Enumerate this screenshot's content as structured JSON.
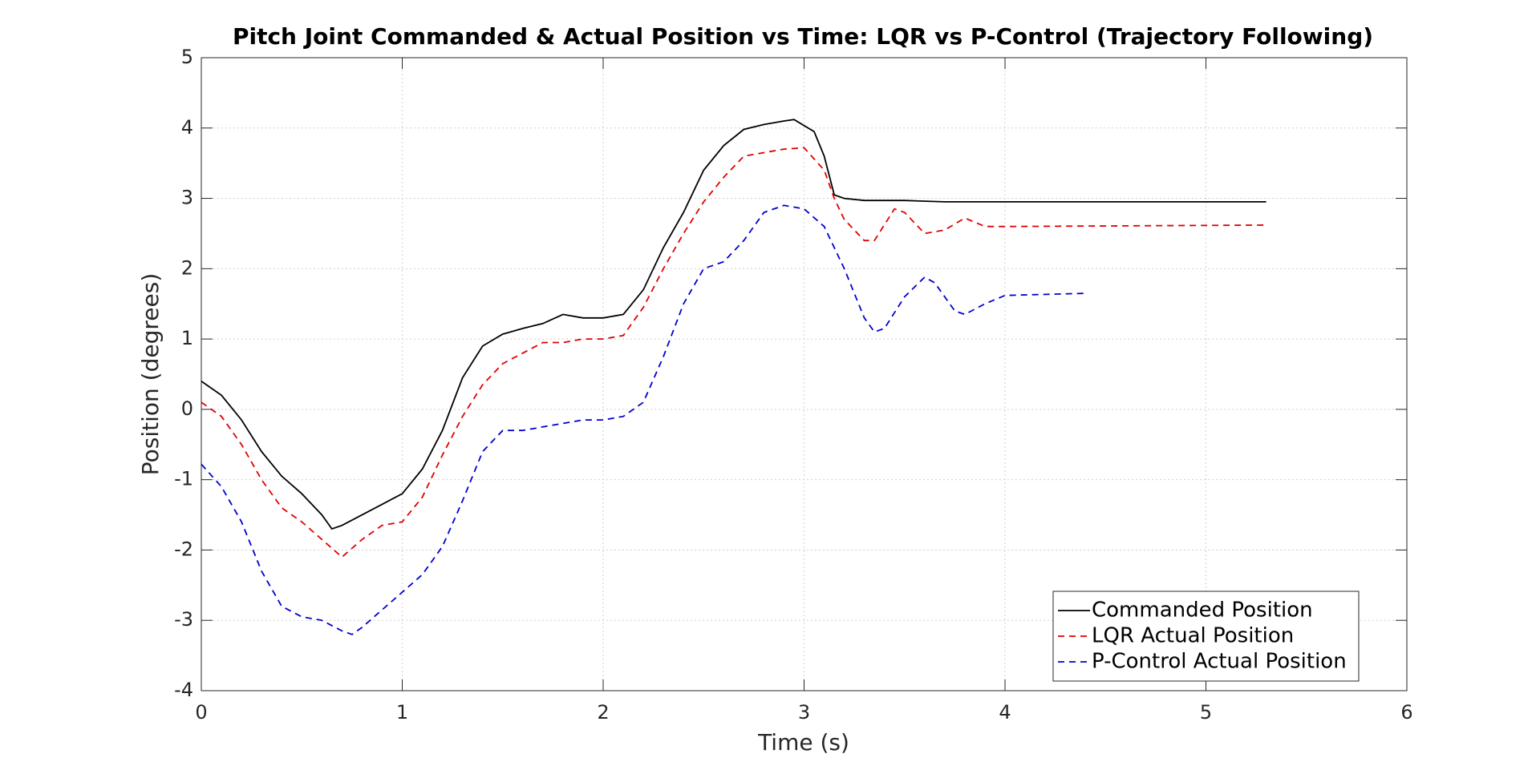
{
  "chart_data": {
    "type": "line",
    "title": "Pitch Joint Commanded & Actual Position vs Time: LQR vs P-Control (Trajectory Following)",
    "x_label": "Time (s)",
    "y_label": "Position (degrees)",
    "xlim": [
      0,
      6
    ],
    "ylim": [
      -4,
      5
    ],
    "xticks": [
      0,
      1,
      2,
      3,
      4,
      5,
      6
    ],
    "yticks": [
      -4,
      -3,
      -2,
      -1,
      0,
      1,
      2,
      3,
      4,
      5
    ],
    "grid": true,
    "legend": "lower right",
    "series": [
      {
        "name": "Commanded Position",
        "color": "#000000",
        "dash": "solid",
        "x": [
          0,
          0.1,
          0.2,
          0.3,
          0.4,
          0.5,
          0.6,
          0.65,
          0.7,
          0.8,
          0.9,
          1.0,
          1.1,
          1.2,
          1.3,
          1.4,
          1.5,
          1.6,
          1.7,
          1.8,
          1.9,
          2.0,
          2.1,
          2.2,
          2.3,
          2.4,
          2.5,
          2.6,
          2.7,
          2.8,
          2.9,
          2.95,
          3.05,
          3.1,
          3.15,
          3.2,
          3.3,
          3.5,
          3.7,
          3.8,
          5.3
        ],
        "values": [
          0.4,
          0.2,
          -0.15,
          -0.6,
          -0.95,
          -1.2,
          -1.5,
          -1.7,
          -1.65,
          -1.5,
          -1.35,
          -1.2,
          -0.85,
          -0.3,
          0.45,
          0.9,
          1.07,
          1.15,
          1.22,
          1.35,
          1.3,
          1.3,
          1.35,
          1.7,
          2.3,
          2.8,
          3.4,
          3.75,
          3.98,
          4.05,
          4.1,
          4.12,
          3.95,
          3.6,
          3.05,
          3.0,
          2.97,
          2.97,
          2.95,
          2.95,
          2.95
        ]
      },
      {
        "name": "LQR Actual Position",
        "color": "#e00000",
        "dash": "dashed",
        "x": [
          0,
          0.1,
          0.2,
          0.3,
          0.4,
          0.5,
          0.6,
          0.7,
          0.8,
          0.9,
          1.0,
          1.1,
          1.2,
          1.3,
          1.4,
          1.5,
          1.6,
          1.7,
          1.8,
          1.9,
          2.0,
          2.1,
          2.2,
          2.3,
          2.4,
          2.5,
          2.6,
          2.7,
          2.8,
          2.9,
          3.0,
          3.1,
          3.15,
          3.2,
          3.3,
          3.35,
          3.45,
          3.5,
          3.6,
          3.7,
          3.8,
          3.9,
          4.0,
          5.3
        ],
        "values": [
          0.1,
          -0.1,
          -0.5,
          -1.0,
          -1.4,
          -1.6,
          -1.85,
          -2.1,
          -1.85,
          -1.65,
          -1.6,
          -1.25,
          -0.65,
          -0.1,
          0.35,
          0.65,
          0.8,
          0.95,
          0.95,
          1.0,
          1.0,
          1.05,
          1.45,
          2.0,
          2.5,
          2.95,
          3.3,
          3.6,
          3.65,
          3.7,
          3.72,
          3.4,
          3.0,
          2.7,
          2.4,
          2.4,
          2.85,
          2.8,
          2.5,
          2.55,
          2.72,
          2.6,
          2.6,
          2.62
        ]
      },
      {
        "name": "P-Control Actual Position",
        "color": "#0000d0",
        "dash": "dashed",
        "x": [
          0,
          0.1,
          0.2,
          0.3,
          0.4,
          0.5,
          0.6,
          0.7,
          0.75,
          0.8,
          0.9,
          1.0,
          1.1,
          1.2,
          1.3,
          1.4,
          1.5,
          1.6,
          1.7,
          1.8,
          1.9,
          2.0,
          2.1,
          2.2,
          2.3,
          2.4,
          2.5,
          2.6,
          2.7,
          2.8,
          2.9,
          3.0,
          3.1,
          3.2,
          3.3,
          3.35,
          3.4,
          3.5,
          3.6,
          3.65,
          3.75,
          3.8,
          3.9,
          4.0,
          4.4
        ],
        "values": [
          -0.78,
          -1.1,
          -1.6,
          -2.3,
          -2.8,
          -2.95,
          -3.0,
          -3.15,
          -3.2,
          -3.1,
          -2.85,
          -2.6,
          -2.35,
          -1.95,
          -1.3,
          -0.6,
          -0.3,
          -0.3,
          -0.25,
          -0.2,
          -0.15,
          -0.15,
          -0.1,
          0.1,
          0.75,
          1.5,
          2.0,
          2.1,
          2.4,
          2.8,
          2.9,
          2.85,
          2.6,
          2.0,
          1.3,
          1.1,
          1.15,
          1.6,
          1.88,
          1.8,
          1.4,
          1.35,
          1.5,
          1.62,
          1.65
        ]
      }
    ]
  }
}
